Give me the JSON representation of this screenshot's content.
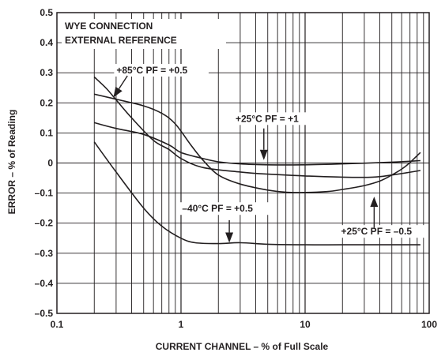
{
  "chart_data": {
    "type": "line",
    "xlabel": "CURRENT CHANNEL – % of Full Scale",
    "ylabel": "ERROR – % of Reading",
    "x_scale": "log",
    "xlim": [
      0.1,
      100
    ],
    "ylim": [
      -0.5,
      0.5
    ],
    "grid": true,
    "x_tick_labels": [
      "0.1",
      "1",
      "10",
      "100"
    ],
    "x_tick_values": [
      0.1,
      1,
      10,
      100
    ],
    "y_tick_labels": [
      "0.5",
      "0.4",
      "0.3",
      "0.2",
      "0.1",
      "0",
      "–0.1",
      "–0.2",
      "–0.3",
      "–0.4",
      "–0.5"
    ],
    "y_tick_values": [
      0.5,
      0.4,
      0.3,
      0.2,
      0.1,
      0,
      -0.1,
      -0.2,
      -0.3,
      -0.4,
      -0.5
    ],
    "box_title": [
      "WYE CONNECTION",
      "EXTERNAL REFERENCE"
    ],
    "line_color": "#231f20",
    "series": [
      {
        "label": "+85°C  PF = +0.5",
        "points": [
          [
            0.2,
            0.229
          ],
          [
            0.3,
            0.212
          ],
          [
            0.5,
            0.19
          ],
          [
            0.7,
            0.165
          ],
          [
            0.9,
            0.13
          ],
          [
            1.2,
            0.06
          ],
          [
            1.5,
            0.01
          ],
          [
            2,
            -0.04
          ],
          [
            3,
            -0.07
          ],
          [
            5,
            -0.09
          ],
          [
            7,
            -0.097
          ],
          [
            10,
            -0.098
          ],
          [
            15,
            -0.095
          ],
          [
            20,
            -0.088
          ],
          [
            30,
            -0.075
          ],
          [
            40,
            -0.06
          ],
          [
            50,
            -0.04
          ],
          [
            65,
            -0.01
          ],
          [
            85,
            0.035
          ]
        ]
      },
      {
        "label": "+25°C  PF = +1",
        "points": [
          [
            0.2,
            0.134
          ],
          [
            0.3,
            0.115
          ],
          [
            0.5,
            0.095
          ],
          [
            0.8,
            0.06
          ],
          [
            1,
            0.035
          ],
          [
            1.5,
            0.015
          ],
          [
            2,
            0.004
          ],
          [
            3,
            -0.003
          ],
          [
            5,
            -0.006
          ],
          [
            10,
            -0.006
          ],
          [
            20,
            -0.003
          ],
          [
            50,
            0.003
          ],
          [
            85,
            0.008
          ]
        ]
      },
      {
        "label": "+25°C  PF = –0.5",
        "points": [
          [
            0.2,
            0.286
          ],
          [
            0.25,
            0.248
          ],
          [
            0.3,
            0.21
          ],
          [
            0.4,
            0.15
          ],
          [
            0.6,
            0.075
          ],
          [
            0.8,
            0.045
          ],
          [
            1,
            0.015
          ],
          [
            1.5,
            -0.015
          ],
          [
            3,
            -0.03
          ],
          [
            5,
            -0.037
          ],
          [
            10,
            -0.043
          ],
          [
            20,
            -0.047
          ],
          [
            35,
            -0.047
          ],
          [
            50,
            -0.04
          ],
          [
            85,
            -0.025
          ]
        ]
      },
      {
        "label": "–40°C  PF = +0.5",
        "points": [
          [
            0.2,
            0.07
          ],
          [
            0.3,
            -0.03
          ],
          [
            0.5,
            -0.15
          ],
          [
            0.7,
            -0.21
          ],
          [
            1,
            -0.25
          ],
          [
            1.3,
            -0.265
          ],
          [
            2,
            -0.268
          ],
          [
            3,
            -0.265
          ],
          [
            5,
            -0.27
          ],
          [
            10,
            -0.272
          ],
          [
            20,
            -0.272
          ],
          [
            50,
            -0.272
          ],
          [
            85,
            -0.272
          ]
        ]
      }
    ],
    "annotations": [
      {
        "text": "+85°C  PF = +0.5",
        "text_x": 0.302,
        "text_y": 0.298,
        "arrow_from": [
          0.37,
          0.29
        ],
        "arrow_to": [
          0.285,
          0.218
        ]
      },
      {
        "text": "+25°C  PF = +1",
        "text_x": 2.75,
        "text_y": 0.137,
        "arrow_from": [
          4.65,
          0.115
        ],
        "arrow_to": [
          4.65,
          0.01
        ]
      },
      {
        "text": "–40°C  PF = +0.5",
        "text_x": 1.02,
        "text_y": -0.162,
        "arrow_from": [
          2.45,
          -0.19
        ],
        "arrow_to": [
          2.45,
          -0.265
        ]
      },
      {
        "text": "+25°C  PF = –0.5",
        "text_x": 19.5,
        "text_y": -0.238,
        "arrow_from": [
          36,
          -0.215
        ],
        "arrow_to": [
          36,
          -0.112
        ]
      }
    ]
  }
}
